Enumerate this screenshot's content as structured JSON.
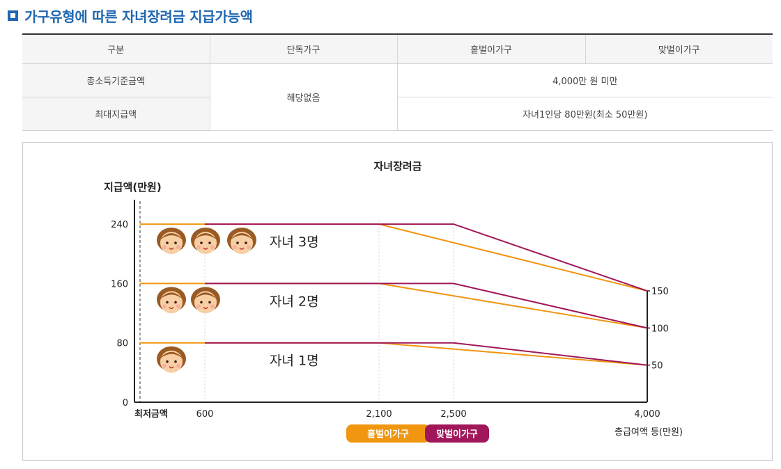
{
  "section_title": "가구유형에 따른 자녀장려금 지급가능액",
  "table": {
    "headers": [
      "구분",
      "단독가구",
      "홑벌이가구",
      "맞벌이가구"
    ],
    "rows": [
      {
        "label": "총소득기준금액",
        "single": "해당없음",
        "value": "4,000만 원 미만"
      },
      {
        "label": "최대지급액",
        "value": "자녀1인당 80만원(최소 50만원)"
      }
    ]
  },
  "chart_data": {
    "type": "line",
    "title": "자녀장려금",
    "ylabel": "지급액(만원)",
    "xlabel": "총급여액 등(만원)",
    "x_min_label": "최저금액",
    "x_ticks": [
      "600",
      "2,100",
      "2,500",
      "4,000"
    ],
    "y_ticks": [
      "0",
      "80",
      "160",
      "240"
    ],
    "right_labels": [
      "150",
      "100",
      "50"
    ],
    "ylim": [
      0,
      270
    ],
    "series": [
      {
        "name": "홑벌이가구",
        "color": "#f0960f",
        "group": "자녀 3명",
        "points": [
          [
            0,
            240
          ],
          [
            600,
            240
          ],
          [
            2100,
            240
          ],
          [
            4000,
            150
          ]
        ]
      },
      {
        "name": "맞벌이가구",
        "color": "#a0185a",
        "group": "자녀 3명",
        "points": [
          [
            600,
            240
          ],
          [
            2500,
            240
          ],
          [
            4000,
            150
          ]
        ]
      },
      {
        "name": "홑벌이가구",
        "color": "#f0960f",
        "group": "자녀 2명",
        "points": [
          [
            0,
            160
          ],
          [
            600,
            160
          ],
          [
            2100,
            160
          ],
          [
            4000,
            100
          ]
        ]
      },
      {
        "name": "맞벌이가구",
        "color": "#a0185a",
        "group": "자녀 2명",
        "points": [
          [
            600,
            160
          ],
          [
            2500,
            160
          ],
          [
            4000,
            100
          ]
        ]
      },
      {
        "name": "홑벌이가구",
        "color": "#f0960f",
        "group": "자녀 1명",
        "points": [
          [
            0,
            80
          ],
          [
            600,
            80
          ],
          [
            2100,
            80
          ],
          [
            4000,
            50
          ]
        ]
      },
      {
        "name": "맞벌이가구",
        "color": "#a0185a",
        "group": "자녀 1명",
        "points": [
          [
            600,
            80
          ],
          [
            2500,
            80
          ],
          [
            4000,
            50
          ]
        ]
      }
    ],
    "groups": [
      {
        "label": "자녀 3명",
        "faces": 3,
        "level": 240
      },
      {
        "label": "자녀 2명",
        "faces": 2,
        "level": 160
      },
      {
        "label": "자녀 1명",
        "faces": 1,
        "level": 80
      }
    ],
    "legend": [
      {
        "label": "홑벌이가구",
        "color": "#f0960f"
      },
      {
        "label": "맞벌이가구",
        "color": "#a0185a"
      }
    ]
  }
}
